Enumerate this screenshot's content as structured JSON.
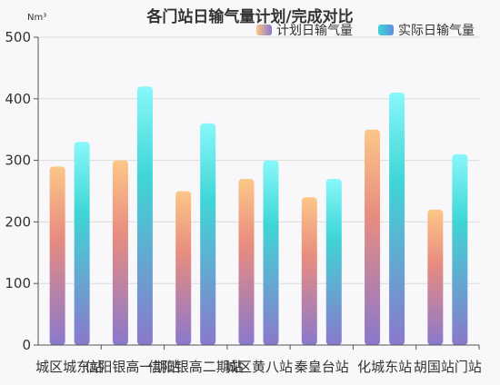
{
  "chart_data": {
    "type": "bar",
    "title": "各门站日输气量计划/完成对比",
    "unit_label": "Nm³",
    "xlabel": "",
    "ylabel": "",
    "ylim": [
      0,
      500
    ],
    "yticks": [
      0,
      100,
      200,
      300,
      400,
      500
    ],
    "grid": true,
    "legend_position": "top-right",
    "categories": [
      "城区城东站",
      "信阳银高一期站",
      "信阳银高二期站",
      "城区黄八站",
      "秦皇台站",
      "化城东站",
      "胡国站门站"
    ],
    "series": [
      {
        "name": "计划日输气量",
        "values": [
          290,
          300,
          250,
          270,
          240,
          350,
          220
        ]
      },
      {
        "name": "实际日输气量",
        "values": [
          330,
          420,
          360,
          300,
          270,
          410,
          310
        ]
      }
    ],
    "colors": {
      "plan_top": "#fcc787",
      "plan_mid": "#e88c80",
      "plan_bottom": "#8a78cc",
      "actual_top": "#88f7fb",
      "actual_mid": "#3fd6d6",
      "actual_bottom": "#8a78cc",
      "legend_plan": "#c9a0c8",
      "legend_actual": "#4cb8e0"
    }
  }
}
